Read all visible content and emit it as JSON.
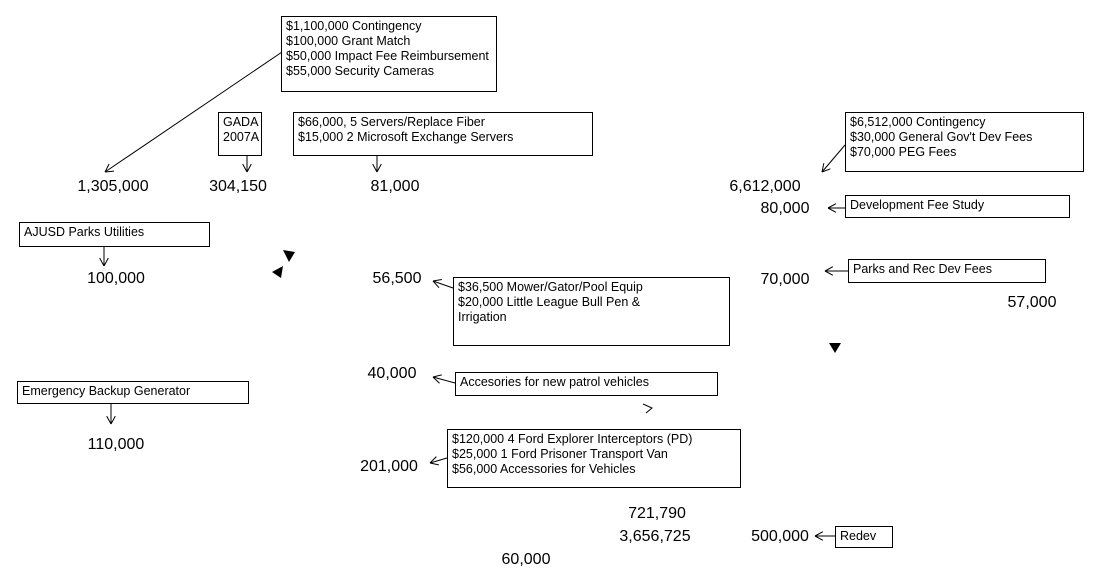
{
  "amounts": [
    "1,305,000",
    "304,150",
    "81,000",
    "6,612,000",
    "80,000",
    "100,000",
    "56,500",
    "70,000",
    "57,000",
    "40,000",
    "110,000",
    "201,000",
    "721,790",
    "3,656,725",
    "500,000",
    "60,000"
  ],
  "notes": [
    {
      "lines": [
        "$1,100,000  Contingency",
        "$100,000  Grant Match",
        "$50,000 Impact Fee Reimbursement",
        "$55,000 Security Cameras"
      ]
    },
    {
      "lines": [
        "GADA",
        "2007A"
      ]
    },
    {
      "lines": [
        "$66,000, 5 Servers/Replace Fiber",
        "$15,000 2 Microsoft Exchange Servers"
      ]
    },
    {
      "lines": [
        "$6,512,000 Contingency",
        "$30,000 General Gov't  Dev Fees",
        "$70,000 PEG Fees"
      ]
    },
    {
      "lines": [
        "Development Fee Study"
      ]
    },
    {
      "lines": [
        "AJUSD Parks Utilities"
      ]
    },
    {
      "lines": [
        "Parks and Rec Dev Fees"
      ]
    },
    {
      "lines": [
        "$36,500 Mower/Gator/Pool  Equip",
        "$20,000 Little League Bull Pen &",
        "Irrigation"
      ]
    },
    {
      "lines": [
        "Accesories for new patrol vehicles"
      ]
    },
    {
      "lines": [
        "Emergency Backup Generator"
      ]
    },
    {
      "lines": [
        "$120,000  4 Ford Explorer Interceptors (PD)",
        "$25,000  1 Ford  Prisoner Transport Van",
        "$56,000  Accessories for Vehicles"
      ]
    },
    {
      "lines": [
        "Redev"
      ]
    }
  ]
}
